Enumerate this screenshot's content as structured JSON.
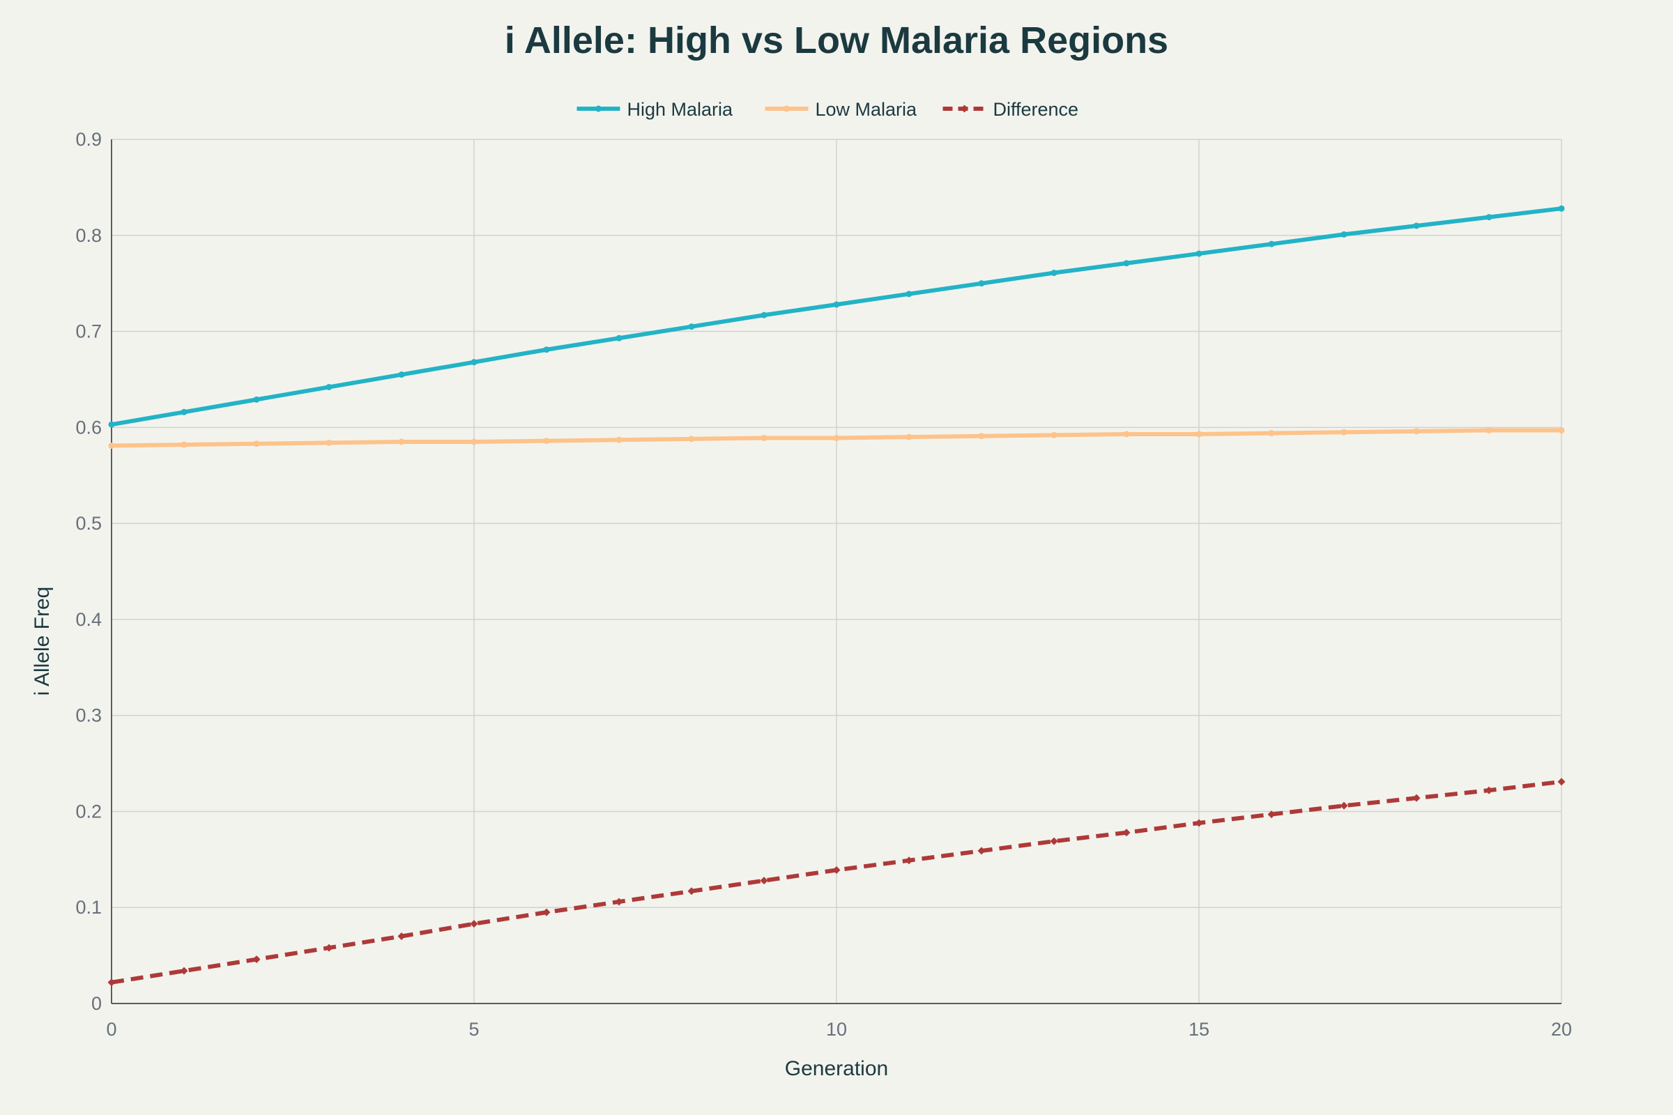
{
  "chart_data": {
    "type": "line",
    "title": "i Allele: High vs Low Malaria Regions",
    "xlabel": "Generation",
    "ylabel": "i Allele Freq",
    "xlim": [
      0,
      20
    ],
    "ylim": [
      0,
      0.9
    ],
    "x_ticks": [
      "0",
      "5",
      "10",
      "15",
      "20"
    ],
    "y_ticks": [
      "0",
      "0.1",
      "0.2",
      "0.3",
      "0.4",
      "0.5",
      "0.6",
      "0.7",
      "0.8",
      "0.9"
    ],
    "grid": true,
    "legend_position": "top-center",
    "x": [
      0,
      1,
      2,
      3,
      4,
      5,
      6,
      7,
      8,
      9,
      10,
      11,
      12,
      13,
      14,
      15,
      16,
      17,
      18,
      19,
      20
    ],
    "series": [
      {
        "name": "High Malaria",
        "color": "#22b3c6",
        "dash": "solid",
        "marker": "circle",
        "values": [
          0.603,
          0.616,
          0.629,
          0.642,
          0.655,
          0.668,
          0.681,
          0.693,
          0.705,
          0.717,
          0.728,
          0.739,
          0.75,
          0.761,
          0.771,
          0.781,
          0.791,
          0.801,
          0.81,
          0.819,
          0.828
        ]
      },
      {
        "name": "Low Malaria",
        "color": "#fdc38a",
        "dash": "solid",
        "marker": "circle",
        "values": [
          0.581,
          0.582,
          0.583,
          0.584,
          0.585,
          0.585,
          0.586,
          0.587,
          0.588,
          0.589,
          0.589,
          0.59,
          0.591,
          0.592,
          0.593,
          0.593,
          0.594,
          0.595,
          0.596,
          0.597,
          0.597
        ]
      },
      {
        "name": "Difference",
        "color": "#ad3a38",
        "dash": "dashed",
        "marker": "diamond",
        "values": [
          0.022,
          0.034,
          0.046,
          0.058,
          0.07,
          0.083,
          0.095,
          0.106,
          0.117,
          0.128,
          0.139,
          0.149,
          0.159,
          0.169,
          0.178,
          0.188,
          0.197,
          0.206,
          0.214,
          0.222,
          0.231
        ]
      }
    ]
  }
}
